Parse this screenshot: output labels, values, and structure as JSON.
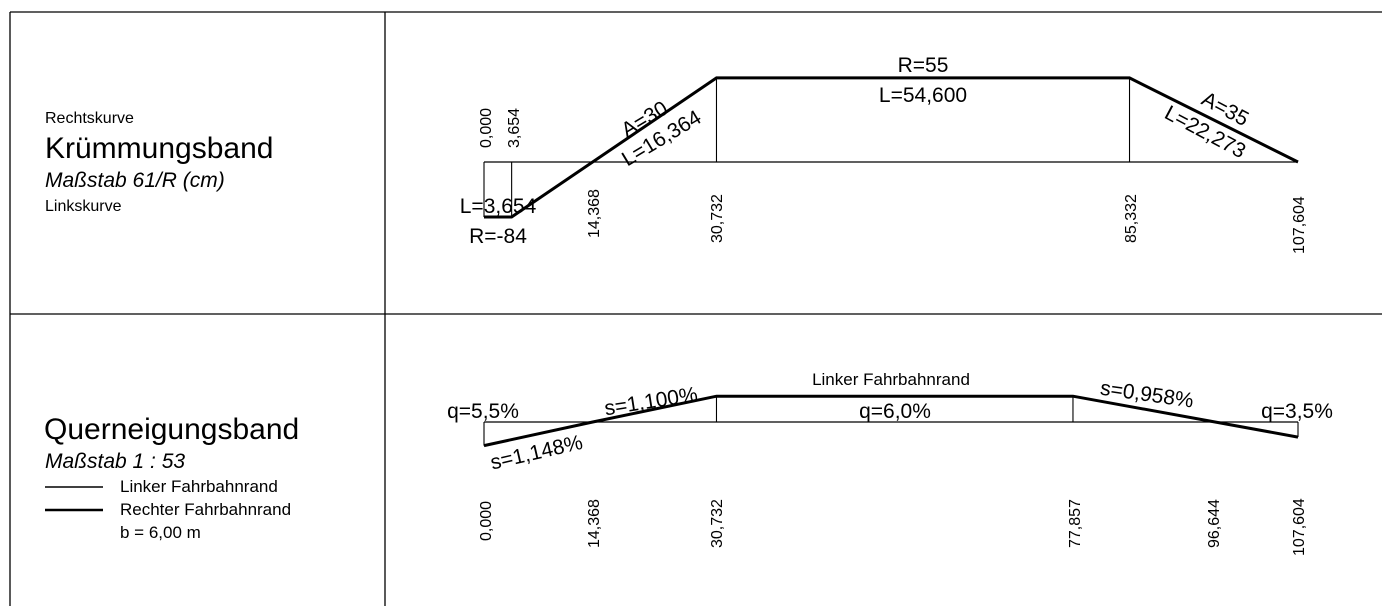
{
  "curvature_band": {
    "right_curve_label": "Rechtskurve",
    "title": "Krümmungsband",
    "scale": "Maßstab 61/R (cm)",
    "left_curve_label": "Linkskurve",
    "segment_labels": [
      {
        "lines": [
          "L=3,654",
          "R=-84"
        ]
      },
      {
        "lines": [
          "A=30",
          "L=16,364"
        ]
      },
      {
        "lines": [
          "R=55",
          "L=54,600"
        ]
      },
      {
        "lines": [
          "A=35",
          "L=22,273"
        ]
      }
    ],
    "stations": [
      "0,000",
      "3,654",
      "14,368",
      "30,732",
      "85,332",
      "107,604"
    ],
    "profile": [
      {
        "station": 0.0,
        "value": -0.726
      },
      {
        "station": 3.654,
        "value": -0.726
      },
      {
        "station": 30.732,
        "value": 1.109
      },
      {
        "station": 85.332,
        "value": 1.109
      },
      {
        "station": 107.604,
        "value": 0.0
      }
    ]
  },
  "crossfall_band": {
    "title": "Querneigungsband",
    "scale": "Maßstab 1 : 53",
    "legend": [
      {
        "label": "Linker Fahrbahnrand"
      },
      {
        "label": "Rechter Fahrbahnrand"
      }
    ],
    "width_note": "b = 6,00 m",
    "top_label": "Linker Fahrbahnrand",
    "annotations": {
      "q_start": "q=5,5%",
      "s_upper": "s=1,100%",
      "s_lower": "s=1,148%",
      "q_middle": "q=6,0%",
      "s_right": "s=0,958%",
      "q_end": "q=3,5%"
    },
    "stations": [
      "0,000",
      "14,368",
      "30,732",
      "77,857",
      "96,644",
      "107,604"
    ],
    "profile": [
      {
        "station": 0.0,
        "value": -5.5
      },
      {
        "station": 14.368,
        "value": 0.0
      },
      {
        "station": 30.732,
        "value": 6.0
      },
      {
        "station": 77.857,
        "value": 6.0
      },
      {
        "station": 96.644,
        "value": 0.0
      },
      {
        "station": 107.604,
        "value": -3.5
      }
    ]
  }
}
